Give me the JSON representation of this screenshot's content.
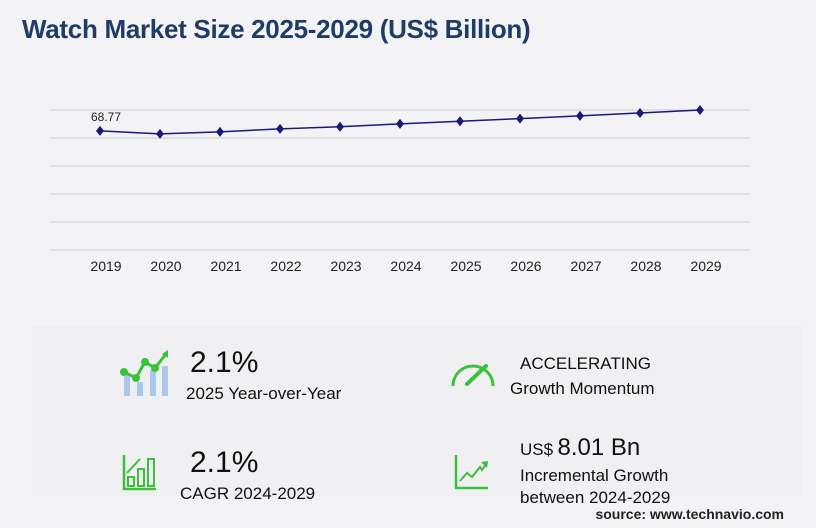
{
  "title": "Watch Market Size 2025-2029 (US$ Billion)",
  "chart_data": {
    "type": "line",
    "categories": [
      "2019",
      "2020",
      "2021",
      "2022",
      "2023",
      "2024",
      "2025",
      "2026",
      "2027",
      "2028",
      "2029"
    ],
    "values": [
      68.77,
      67.0,
      68.2,
      69.9,
      71.1,
      72.8,
      74.3,
      75.8,
      77.4,
      79.1,
      80.8
    ],
    "data_labels": [
      "68.77"
    ],
    "title": "",
    "xlabel": "",
    "ylabel": "",
    "ylim": [
      0,
      80.8
    ],
    "grid": true,
    "y_tick_labels_shown": false,
    "line_color": "#1a1a7a",
    "marker": "diamond"
  },
  "stats": {
    "yoy_value": "2.1%",
    "yoy_label": "2025 Year-over-Year",
    "momentum_value": "ACCELERATING",
    "momentum_label": "Growth Momentum",
    "cagr_value": "2.1%",
    "cagr_label": "CAGR 2024-2029",
    "incr_prefix": "US$",
    "incr_value": "8.01 Bn",
    "incr_label1": "Incremental Growth",
    "incr_label2": "between 2024-2029"
  },
  "source": "source: www.technavio.com",
  "colors": {
    "title": "#1f3c67",
    "accent_green": "#3cc13c",
    "bar_blue": "#a9c8ee"
  }
}
